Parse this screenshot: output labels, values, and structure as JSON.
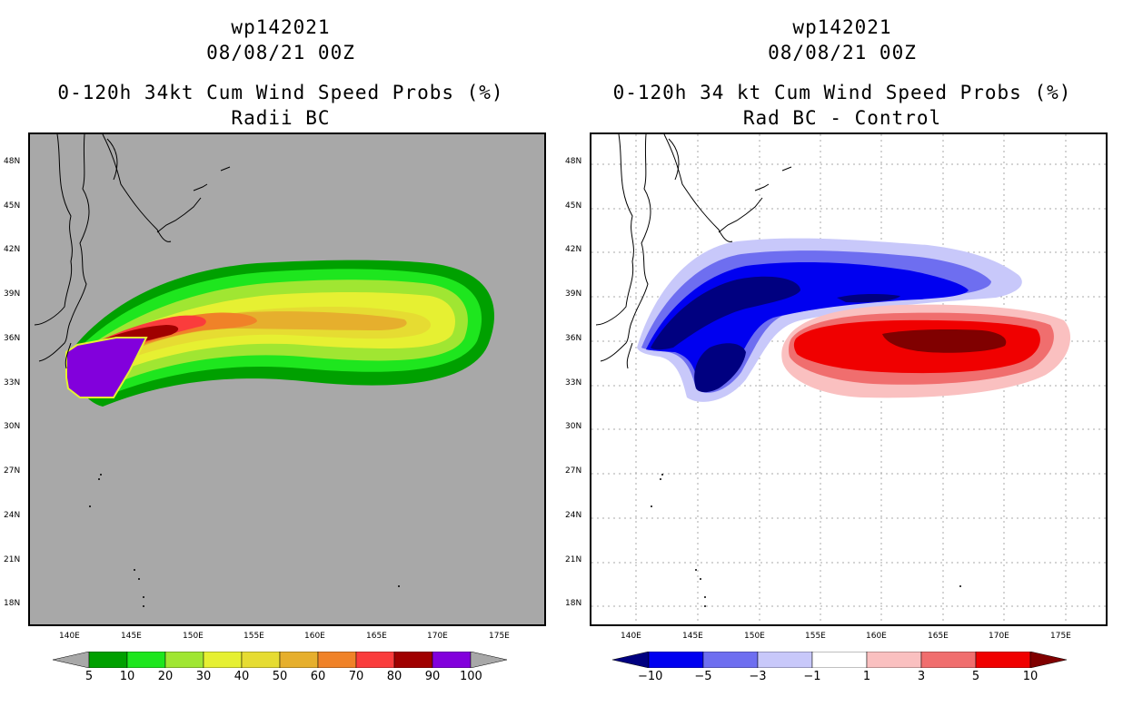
{
  "left": {
    "title": {
      "storm_id": "wp142021",
      "datetime": "08/08/21 00Z",
      "product": "0-120h 34kt Cum Wind Speed Probs (%)",
      "subtitle": "Radii BC"
    },
    "colorbar": {
      "colors": [
        "#a8a8a8",
        "#00a000",
        "#1ee61e",
        "#a0e632",
        "#e6f032",
        "#e6dc32",
        "#e6af2d",
        "#f08228",
        "#fa3c3c",
        "#a00000",
        "#8200dc",
        "#a8a8a8"
      ],
      "labels": [
        "5",
        "10",
        "20",
        "30",
        "40",
        "50",
        "60",
        "70",
        "80",
        "90",
        "100"
      ]
    }
  },
  "right": {
    "title": {
      "storm_id": "wp142021",
      "datetime": "08/08/21 00Z",
      "product": "0-120h 34 kt Cum Wind Speed Probs (%)",
      "subtitle": "Rad BC - Control"
    },
    "colorbar": {
      "colors": [
        "#000080",
        "#0000f0",
        "#6e6ef0",
        "#c8c8fa",
        "#ffffff",
        "#fac0c0",
        "#f06e6e",
        "#f00000",
        "#800000"
      ],
      "labels": [
        "−10",
        "−5",
        "−3",
        "−1",
        "1",
        "3",
        "5",
        "10"
      ]
    }
  },
  "axes": {
    "lat_ticks": [
      "48N",
      "45N",
      "42N",
      "39N",
      "36N",
      "33N",
      "30N",
      "27N",
      "24N",
      "21N",
      "18N"
    ],
    "lon_ticks": [
      "140E",
      "145E",
      "150E",
      "155E",
      "160E",
      "165E",
      "170E",
      "175E"
    ]
  }
}
